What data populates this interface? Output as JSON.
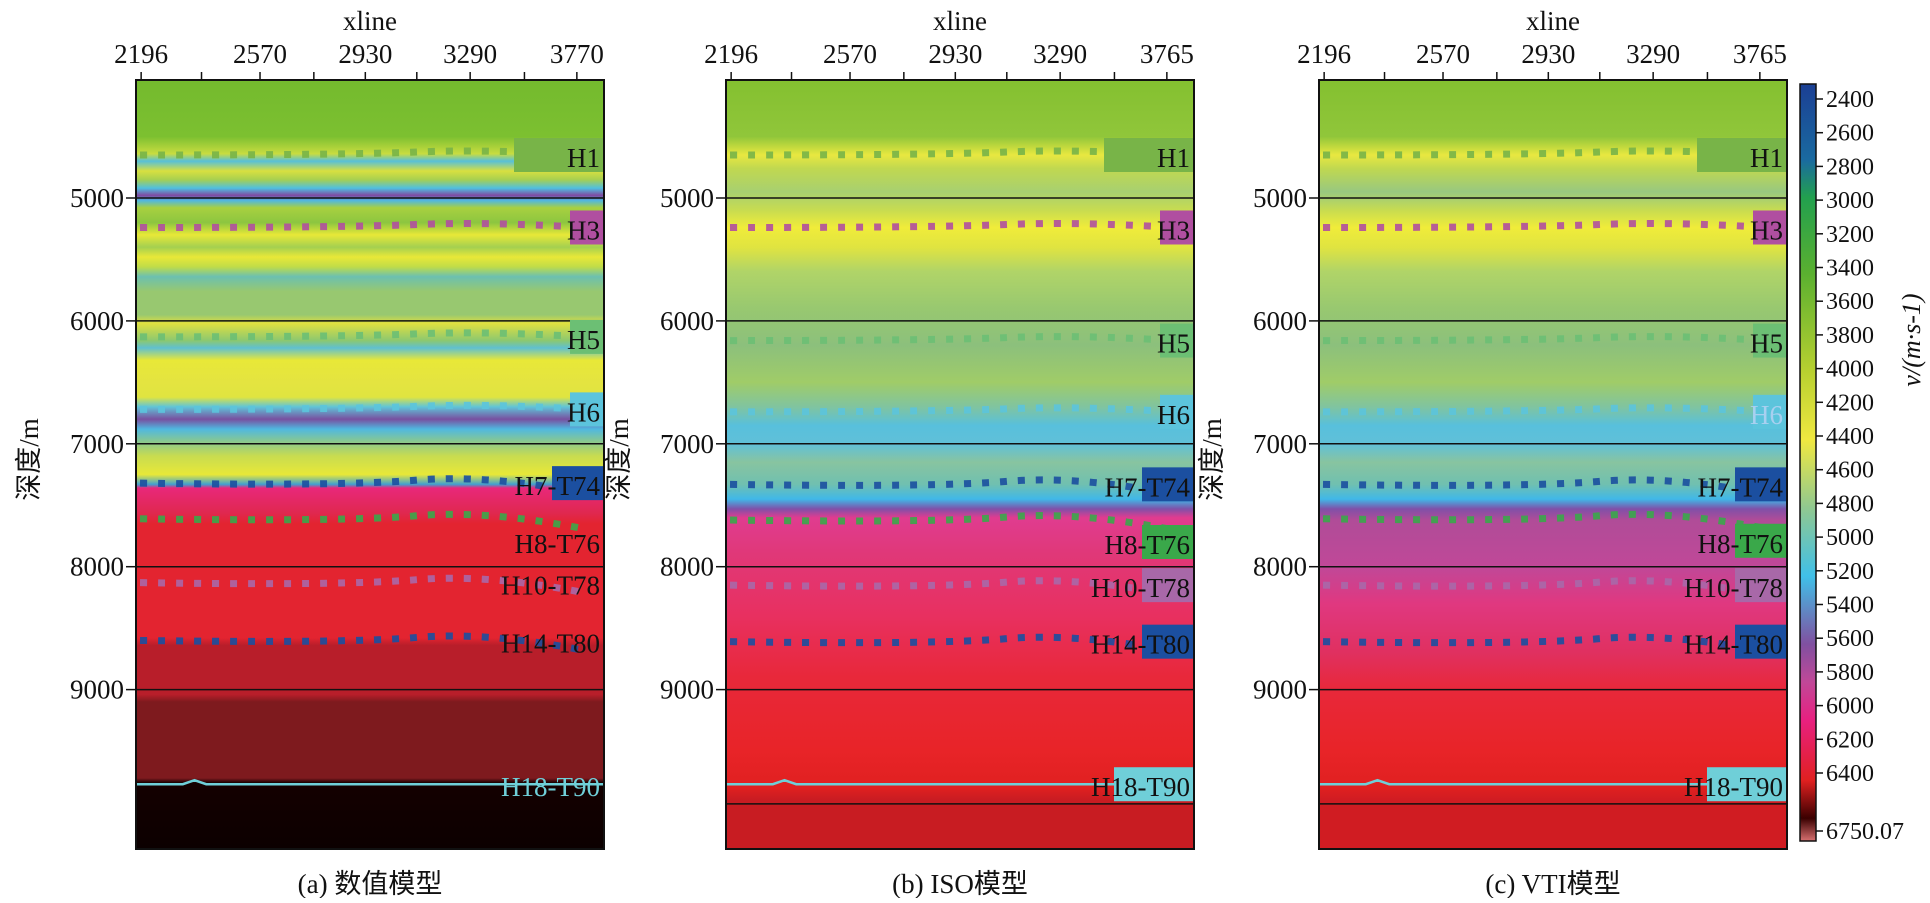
{
  "chart_data": [
    {
      "type": "heatmap",
      "caption": "(a) 数值模型",
      "xlabel": "xline",
      "ylabel": "深度/m",
      "xticks": [
        "2196",
        "2570",
        "2930",
        "3290",
        "3770"
      ],
      "yticks": [
        5000,
        6000,
        7000,
        8000,
        9000
      ],
      "ylim": [
        4040,
        10310
      ],
      "horizons": [
        {
          "label": "H1",
          "depth": 4650
        },
        {
          "label": "H3",
          "depth": 5240
        },
        {
          "label": "H5",
          "depth": 6130
        },
        {
          "label": "H6",
          "depth": 6720
        },
        {
          "label": "H7-T74",
          "depth": 7320
        },
        {
          "label": "H8-T76",
          "depth": 7610
        },
        {
          "label": "H10-T78",
          "depth": 8130
        },
        {
          "label": "H14-T80",
          "depth": 8600
        },
        {
          "label": "H18-T90",
          "depth": 9770
        }
      ]
    },
    {
      "type": "heatmap",
      "caption": "(b) ISO模型",
      "xlabel": "xline",
      "ylabel": "深度/m",
      "xticks": [
        "2196",
        "2570",
        "2930",
        "3290",
        "3765"
      ],
      "yticks": [
        5000,
        6000,
        7000,
        8000,
        9000
      ],
      "ylim": [
        4040,
        10310
      ],
      "horizons": [
        {
          "label": "H1",
          "depth": 4650
        },
        {
          "label": "H3",
          "depth": 5240
        },
        {
          "label": "H5",
          "depth": 6160
        },
        {
          "label": "H6",
          "depth": 6740
        },
        {
          "label": "H7-T74",
          "depth": 7330
        },
        {
          "label": "H8-T76",
          "depth": 7620
        },
        {
          "label": "H10-T78",
          "depth": 8150
        },
        {
          "label": "H14-T80",
          "depth": 8610
        },
        {
          "label": "H18-T90",
          "depth": 9770
        }
      ]
    },
    {
      "type": "heatmap",
      "caption": "(c) VTI模型",
      "xlabel": "xline",
      "ylabel": "深度/m",
      "xticks": [
        "2196",
        "2570",
        "2930",
        "3290",
        "3765"
      ],
      "yticks": [
        5000,
        6000,
        7000,
        8000,
        9000
      ],
      "ylim": [
        4040,
        10310
      ],
      "horizons": [
        {
          "label": "H1",
          "depth": 4650
        },
        {
          "label": "H3",
          "depth": 5240
        },
        {
          "label": "H5",
          "depth": 6160
        },
        {
          "label": "H6",
          "depth": 6740
        },
        {
          "label": "H7-T74",
          "depth": 7330
        },
        {
          "label": "H8-T76",
          "depth": 7610
        },
        {
          "label": "H10-T78",
          "depth": 8150
        },
        {
          "label": "H14-T80",
          "depth": 8610
        },
        {
          "label": "H18-T90",
          "depth": 9770
        }
      ]
    }
  ],
  "colorbar": {
    "label": "v/(m·s-1)",
    "label_var": "v",
    "label_unit": "/(m·s",
    "label_exp": "-1",
    "ticks": [
      "2400",
      "2600",
      "2800",
      "3000",
      "3200",
      "3400",
      "3600",
      "3800",
      "4000",
      "4200",
      "4400",
      "4600",
      "4800",
      "5000",
      "5200",
      "5400",
      "5600",
      "5800",
      "6000",
      "6200",
      "6400"
    ],
    "max_label": "6750.07",
    "range": [
      2400,
      6750.07
    ],
    "colors": [
      "#1b3f94",
      "#1a6aa0",
      "#22a04e",
      "#5ab030",
      "#b8d030",
      "#f0e840",
      "#90c890",
      "#40c0e8",
      "#8050a0",
      "#c04898",
      "#e82080",
      "#e02020",
      "#3a0000",
      "#d87070"
    ]
  },
  "horizon_colors": {
    "H1": "#78b448",
    "H3": "#b04fa0",
    "H5": "#6cbf74",
    "H6": "#5cc4dc",
    "H7-T74": "#1b4fa0",
    "H8-T76": "#3aa84a",
    "H10-T78": "#a868a8",
    "H14-T80": "#1b4fa0",
    "H18-T90": "#6fcfd8"
  }
}
